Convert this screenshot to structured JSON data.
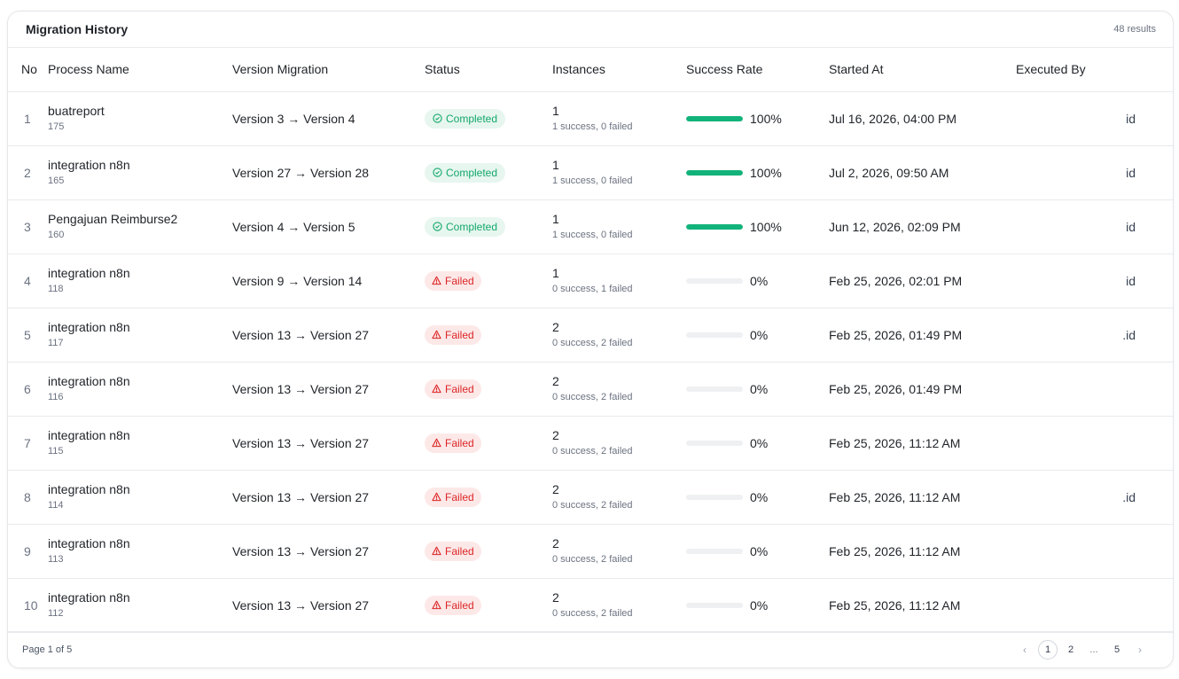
{
  "header": {
    "title": "Migration History",
    "count": "48 results"
  },
  "columns": [
    "No",
    "Process Name",
    "Version Migration",
    "Status",
    "Instances",
    "Success Rate",
    "Started At",
    "Executed By"
  ],
  "rows": [
    {
      "no": "1",
      "name": "buatreport",
      "id": "175",
      "migration": "Version 3 → Version 4",
      "status": "Completed",
      "status_type": "completed",
      "instances": "1",
      "instances_detail": "1 success, 0 failed",
      "rate": 100,
      "rate_label": "100%",
      "started": "Jul 16, 2026, 04:00 PM",
      "executed": "id"
    },
    {
      "no": "2",
      "name": "integration n8n",
      "id": "165",
      "migration": "Version 27 → Version 28",
      "status": "Completed",
      "status_type": "completed",
      "instances": "1",
      "instances_detail": "1 success, 0 failed",
      "rate": 100,
      "rate_label": "100%",
      "started": "Jul 2, 2026, 09:50 AM",
      "executed": "id"
    },
    {
      "no": "3",
      "name": "Pengajuan Reimburse2",
      "id": "160",
      "migration": "Version 4 → Version 5",
      "status": "Completed",
      "status_type": "completed",
      "instances": "1",
      "instances_detail": "1 success, 0 failed",
      "rate": 100,
      "rate_label": "100%",
      "started": "Jun 12, 2026, 02:09 PM",
      "executed": "id"
    },
    {
      "no": "4",
      "name": "integration n8n",
      "id": "118",
      "migration": "Version 9 → Version 14",
      "status": "Failed",
      "status_type": "failed",
      "instances": "1",
      "instances_detail": "0 success, 1 failed",
      "rate": 0,
      "rate_label": "0%",
      "started": "Feb 25, 2026, 02:01 PM",
      "executed": "id"
    },
    {
      "no": "5",
      "name": "integration n8n",
      "id": "117",
      "migration": "Version 13 → Version 27",
      "status": "Failed",
      "status_type": "failed",
      "instances": "2",
      "instances_detail": "0 success, 2 failed",
      "rate": 0,
      "rate_label": "0%",
      "started": "Feb 25, 2026, 01:49 PM",
      "executed": ".id"
    },
    {
      "no": "6",
      "name": "integration n8n",
      "id": "116",
      "migration": "Version 13 → Version 27",
      "status": "Failed",
      "status_type": "failed",
      "instances": "2",
      "instances_detail": "0 success, 2 failed",
      "rate": 0,
      "rate_label": "0%",
      "started": "Feb 25, 2026, 01:49 PM",
      "executed": ""
    },
    {
      "no": "7",
      "name": "integration n8n",
      "id": "115",
      "migration": "Version 13 → Version 27",
      "status": "Failed",
      "status_type": "failed",
      "instances": "2",
      "instances_detail": "0 success, 2 failed",
      "rate": 0,
      "rate_label": "0%",
      "started": "Feb 25, 2026, 11:12 AM",
      "executed": ""
    },
    {
      "no": "8",
      "name": "integration n8n",
      "id": "114",
      "migration": "Version 13 → Version 27",
      "status": "Failed",
      "status_type": "failed",
      "instances": "2",
      "instances_detail": "0 success, 2 failed",
      "rate": 0,
      "rate_label": "0%",
      "started": "Feb 25, 2026, 11:12 AM",
      "executed": ".id"
    },
    {
      "no": "9",
      "name": "integration n8n",
      "id": "113",
      "migration": "Version 13 → Version 27",
      "status": "Failed",
      "status_type": "failed",
      "instances": "2",
      "instances_detail": "0 success, 2 failed",
      "rate": 0,
      "rate_label": "0%",
      "started": "Feb 25, 2026, 11:12 AM",
      "executed": ""
    },
    {
      "no": "10",
      "name": "integration n8n",
      "id": "112",
      "migration": "Version 13 → Version 27",
      "status": "Failed",
      "status_type": "failed",
      "instances": "2",
      "instances_detail": "0 success, 2 failed",
      "rate": 0,
      "rate_label": "0%",
      "started": "Feb 25, 2026, 11:12 AM",
      "executed": ""
    }
  ],
  "footer": {
    "page_info": "Page 1 of 5",
    "pages": [
      "1",
      "2",
      "...",
      "5"
    ],
    "prev_icon": "chevron-left-icon",
    "next_icon": "chevron-right-icon"
  },
  "colors": {
    "success": "#12b37a",
    "failed": "#dc2626",
    "completed_bg": "#e7f6ef",
    "failed_bg": "#fde8e8"
  }
}
